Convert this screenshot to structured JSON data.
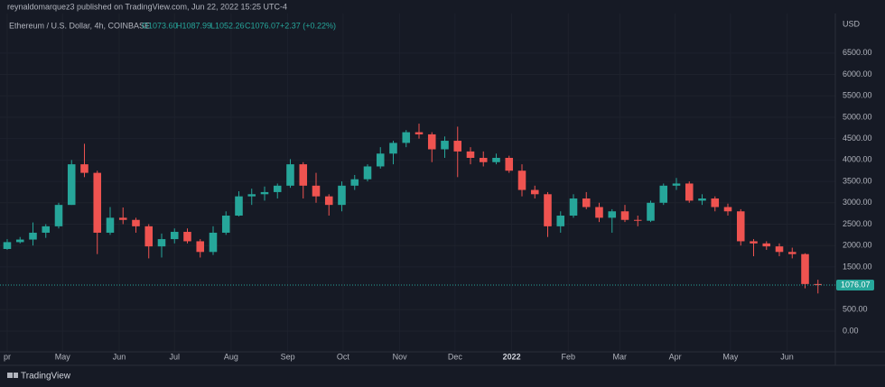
{
  "header": {
    "publisher": "reynaldomarquez3 published on TradingView.com, Jun 22, 2022 15:25 UTC-4"
  },
  "legend": {
    "symbol": "Ethereum / U.S. Dollar, 4h, COINBASE",
    "open": "O1073.60",
    "high": "H1087.99",
    "low": "L1052.26",
    "close": "C1076.07",
    "change": "+2.37 (+0.22%)"
  },
  "footer": {
    "brand": "TradingView"
  },
  "chart_data": {
    "type": "candlestick",
    "currency": "USD",
    "up_color": "#26a69a",
    "down_color": "#ef5350",
    "grid": true,
    "last_price": {
      "value": 1076.07,
      "label": "1076.07"
    },
    "x": [
      0,
      1,
      2,
      3,
      4,
      5,
      6,
      7,
      8,
      9,
      10,
      11,
      12,
      13,
      14,
      15,
      16,
      17,
      18,
      19,
      20,
      21,
      22,
      23,
      24,
      25,
      26,
      27,
      28,
      29,
      30,
      31,
      32,
      33,
      34,
      35,
      36,
      37,
      38,
      39,
      40,
      41,
      42,
      43,
      44,
      45,
      46,
      47,
      48,
      49,
      50,
      51,
      52,
      53,
      54,
      55,
      56,
      57,
      58,
      59,
      60,
      61,
      62,
      63
    ],
    "open": [
      1920,
      2080,
      2140,
      2300,
      2450,
      2950,
      3900,
      3700,
      2300,
      2650,
      2600,
      2450,
      1980,
      2150,
      2320,
      2100,
      1850,
      2300,
      2700,
      3150,
      3200,
      3250,
      3400,
      3900,
      3400,
      3150,
      2950,
      3400,
      3550,
      3850,
      4150,
      4400,
      4650,
      4600,
      4250,
      4450,
      4200,
      4050,
      3950,
      4050,
      3750,
      3300,
      3200,
      2450,
      2700,
      3100,
      2900,
      2650,
      2800,
      2600,
      2580,
      3000,
      3400,
      3450,
      3050,
      3100,
      2900,
      2800,
      2100,
      2050,
      1980,
      1850,
      1800,
      1100
    ],
    "high": [
      2150,
      2200,
      2540,
      2500,
      3000,
      4000,
      4380,
      3750,
      2900,
      2890,
      2650,
      2500,
      2280,
      2400,
      2400,
      2150,
      2450,
      2800,
      3270,
      3330,
      3380,
      3450,
      4020,
      3950,
      3700,
      3200,
      3500,
      3650,
      3900,
      4300,
      4450,
      4700,
      4850,
      4650,
      4550,
      4780,
      4300,
      4200,
      4150,
      4100,
      3900,
      3400,
      3250,
      2800,
      3200,
      3250,
      3000,
      2850,
      2950,
      2700,
      3050,
      3450,
      3580,
      3500,
      3200,
      3150,
      2980,
      2850,
      2150,
      2100,
      2050,
      1950,
      1820,
      1200
    ],
    "low": [
      1900,
      2050,
      2000,
      2180,
      2400,
      2950,
      3600,
      1800,
      2250,
      2500,
      2300,
      1700,
      1720,
      2050,
      2050,
      1720,
      1780,
      2250,
      2680,
      2950,
      3050,
      3100,
      3350,
      3100,
      3000,
      2700,
      2800,
      3300,
      3500,
      3800,
      3900,
      4300,
      4500,
      3950,
      4050,
      3600,
      3900,
      3850,
      3900,
      3700,
      3150,
      3100,
      2200,
      2300,
      2650,
      2850,
      2550,
      2300,
      2550,
      2450,
      2550,
      2950,
      3300,
      3000,
      2950,
      2800,
      2700,
      2000,
      1750,
      1900,
      1750,
      1700,
      1000,
      880
    ],
    "close": [
      2080,
      2140,
      2300,
      2450,
      2950,
      3900,
      3700,
      2300,
      2650,
      2600,
      2450,
      1980,
      2150,
      2320,
      2100,
      1850,
      2300,
      2700,
      3150,
      3200,
      3250,
      3400,
      3900,
      3400,
      3150,
      2950,
      3400,
      3550,
      3850,
      4150,
      4400,
      4650,
      4600,
      4250,
      4450,
      4200,
      4050,
      3950,
      4050,
      3750,
      3300,
      3200,
      2450,
      2700,
      3100,
      2900,
      2650,
      2800,
      2600,
      2580,
      3000,
      3400,
      3450,
      3050,
      3100,
      2900,
      2800,
      2100,
      2050,
      1980,
      1850,
      1800,
      1100,
      1076
    ],
    "xlim": [
      -0.56,
      64.35
    ],
    "xticks": [
      {
        "value": 0,
        "label": "pr"
      },
      {
        "value": 4.3,
        "label": "May"
      },
      {
        "value": 8.7,
        "label": "Jun"
      },
      {
        "value": 13,
        "label": "Jul"
      },
      {
        "value": 17.4,
        "label": "Aug"
      },
      {
        "value": 21.8,
        "label": "Sep"
      },
      {
        "value": 26.1,
        "label": "Oct"
      },
      {
        "value": 30.5,
        "label": "Nov"
      },
      {
        "value": 34.8,
        "label": "Dec"
      },
      {
        "value": 39.2,
        "label": "2022"
      },
      {
        "value": 43.6,
        "label": "Feb"
      },
      {
        "value": 47.6,
        "label": "Mar"
      },
      {
        "value": 51.9,
        "label": "Apr"
      },
      {
        "value": 56.2,
        "label": "May"
      },
      {
        "value": 60.6,
        "label": "Jun"
      }
    ],
    "ylim": [
      -485,
      7425
    ],
    "yticks": [
      {
        "value": 0,
        "label": "0.00"
      },
      {
        "value": 500,
        "label": "500.00"
      },
      {
        "value": 1500,
        "label": "1500.00"
      },
      {
        "value": 2000,
        "label": "2000.00"
      },
      {
        "value": 2500,
        "label": "2500.00"
      },
      {
        "value": 3000,
        "label": "3000.00"
      },
      {
        "value": 3500,
        "label": "3500.00"
      },
      {
        "value": 4000,
        "label": "4000.00"
      },
      {
        "value": 4500,
        "label": "4500.00"
      },
      {
        "value": 5000,
        "label": "5000.00"
      },
      {
        "value": 5500,
        "label": "5500.00"
      },
      {
        "value": 6000,
        "label": "6000.00"
      },
      {
        "value": 6500,
        "label": "6500.00"
      }
    ]
  }
}
